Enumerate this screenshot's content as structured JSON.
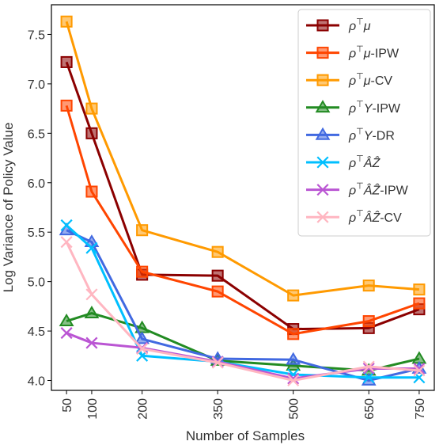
{
  "chart_data": {
    "type": "line",
    "title": "",
    "xlabel": "Number of Samples",
    "ylabel": "Log Variance of Policy Value",
    "x": [
      50,
      100,
      200,
      350,
      500,
      650,
      750
    ],
    "x_tick_labels": [
      "50",
      "100",
      "200",
      "350",
      "500",
      "650",
      "750"
    ],
    "xlim": [
      20,
      780
    ],
    "ylim": [
      3.9,
      7.8
    ],
    "y_ticks": [
      4.0,
      4.5,
      5.0,
      5.5,
      6.0,
      6.5,
      7.0,
      7.5
    ],
    "y_tick_labels": [
      "4.0",
      "4.5",
      "5.0",
      "5.5",
      "6.0",
      "6.5",
      "7.0",
      "7.5"
    ],
    "grid": false,
    "legend_position": "top-right",
    "series": [
      {
        "name": "ρ⊤μ",
        "color": "#8B0000",
        "marker": "square",
        "values": [
          7.22,
          6.5,
          5.07,
          5.06,
          4.52,
          4.53,
          4.72
        ]
      },
      {
        "name": "ρ⊤μ-IPW",
        "color": "#FF4500",
        "marker": "square",
        "values": [
          6.78,
          5.91,
          5.1,
          4.9,
          4.47,
          4.6,
          4.78
        ]
      },
      {
        "name": "ρ⊤μ-CV",
        "color": "#FF9A00",
        "marker": "square",
        "values": [
          7.63,
          6.75,
          5.52,
          5.3,
          4.86,
          4.96,
          4.92
        ]
      },
      {
        "name": "ρ⊤Y-IPW",
        "color": "#228B22",
        "marker": "triangle",
        "values": [
          4.6,
          4.68,
          4.53,
          4.2,
          4.15,
          4.1,
          4.22
        ]
      },
      {
        "name": "ρ⊤Y-DR",
        "color": "#4169E1",
        "marker": "triangle",
        "values": [
          5.52,
          5.4,
          4.42,
          4.22,
          4.21,
          4.0,
          4.12
        ]
      },
      {
        "name": "ρ⊤ÂẐ",
        "color": "#00BFFF",
        "marker": "x",
        "values": [
          5.57,
          5.34,
          4.25,
          4.19,
          4.06,
          4.03,
          4.03
        ]
      },
      {
        "name": "ρ⊤ÂẐ-IPW",
        "color": "#BA55D3",
        "marker": "x",
        "values": [
          4.48,
          4.38,
          4.33,
          4.19,
          4.02,
          4.12,
          4.12
        ]
      },
      {
        "name": "ρ⊤ÂẐ-CV",
        "color": "#FFB6C1",
        "marker": "x",
        "values": [
          5.4,
          4.87,
          4.32,
          4.18,
          4.0,
          4.14,
          4.1
        ]
      }
    ],
    "legend": [
      {
        "prefix": "ρ",
        "mid": "μ",
        "suffix": ""
      },
      {
        "prefix": "ρ",
        "mid": "μ",
        "suffix": "-IPW"
      },
      {
        "prefix": "ρ",
        "mid": "μ",
        "suffix": "-CV"
      },
      {
        "prefix": "ρ",
        "mid": "Y",
        "suffix": "-IPW"
      },
      {
        "prefix": "ρ",
        "mid": "Y",
        "suffix": "-DR"
      },
      {
        "prefix": "ρ",
        "mid": "ÂẐ",
        "suffix": ""
      },
      {
        "prefix": "ρ",
        "mid": "ÂẐ",
        "suffix": "-IPW"
      },
      {
        "prefix": "ρ",
        "mid": "ÂẐ",
        "suffix": "-CV"
      }
    ],
    "legend_superscript": "⊤"
  }
}
